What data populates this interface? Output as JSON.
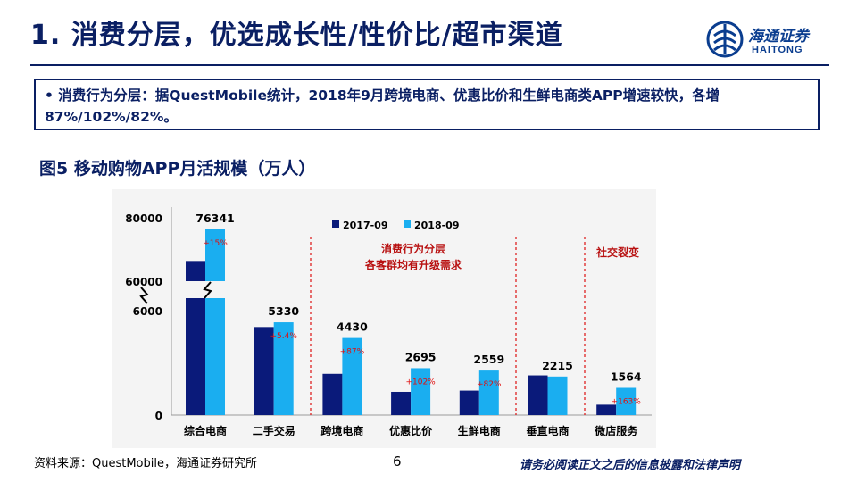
{
  "header": {
    "title": "1. 消费分层，优选成长性/性价比/超市渠道",
    "logo_cn": "海通证券",
    "logo_en": "HAITONG"
  },
  "note": {
    "text": "• 消费行为分层：据QuestMobile统计，2018年9月跨境电商、优惠比价和生鲜电商类APP增速较快，各增87%/102%/82%。"
  },
  "figure": {
    "title": "图5 移动购物APP月活规模（万人）"
  },
  "chart_data": {
    "type": "bar",
    "categories": [
      "综合电商",
      "二手交易",
      "跨境电商",
      "优惠比价",
      "生鲜电商",
      "垂直电商",
      "微店服务"
    ],
    "series": [
      {
        "name": "2017-09",
        "values": [
          66384,
          5060,
          2370,
          1334,
          1406,
          2280,
          595
        ],
        "color": "#0a1a7a"
      },
      {
        "name": "2018-09",
        "values": [
          76341,
          5330,
          4430,
          2695,
          2559,
          2215,
          1564
        ],
        "color": "#1aaef0"
      }
    ],
    "data_labels": [
      "76341",
      "5330",
      "4430",
      "2695",
      "2559",
      "2215",
      "1564"
    ],
    "growth_labels": [
      "+15%",
      "+5.4%",
      "+87%",
      "+102%",
      "+82%",
      "",
      "+163%"
    ],
    "y_ticks": [
      "80000",
      "60000",
      "6000",
      "0"
    ],
    "y_break": {
      "lower_range": [
        0,
        6000
      ],
      "upper_range": [
        60000,
        80000
      ]
    },
    "legend_position": "top",
    "annotations": [
      {
        "lines": [
          "消费行为分层",
          "各客群均有升级需求"
        ]
      },
      {
        "lines": [
          "社交裂变"
        ]
      }
    ],
    "grid": false
  },
  "footer": {
    "source": "资料来源：QuestMobile，海通证券研究所",
    "page": "6",
    "disclaimer": "请务必阅读正文之后的信息披露和法律声明"
  }
}
